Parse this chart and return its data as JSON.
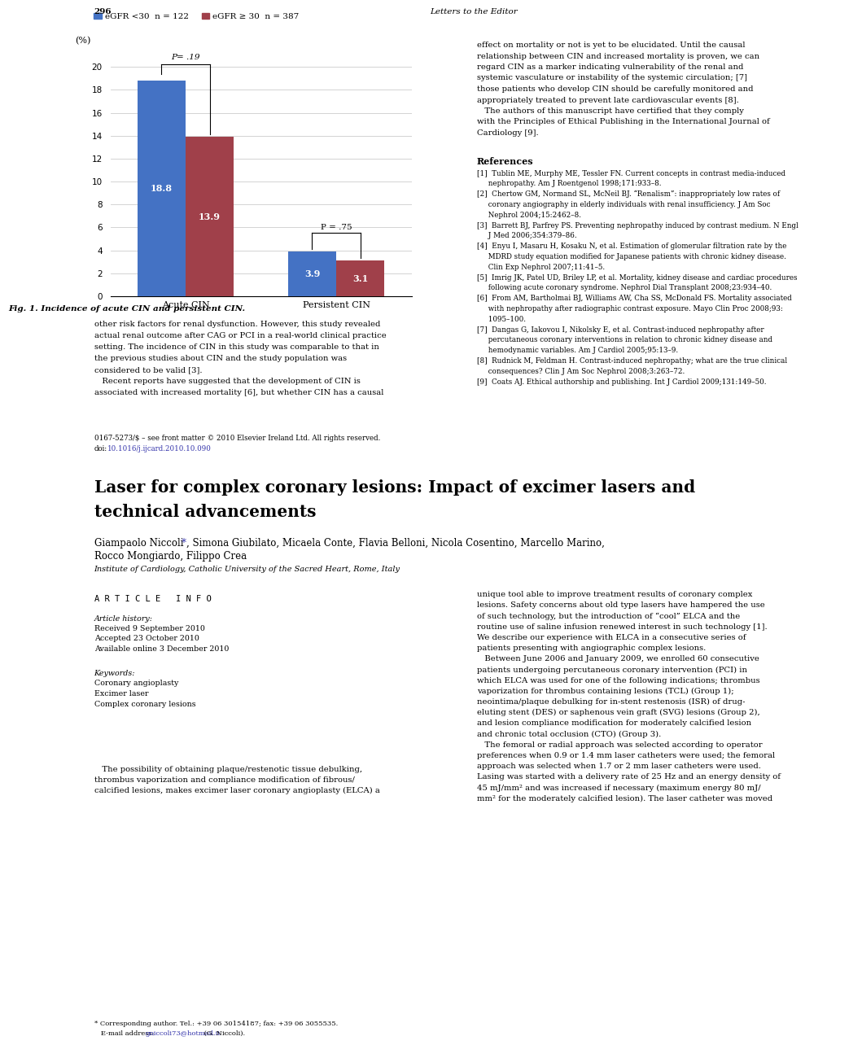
{
  "page_number": "296",
  "journal_header": "Letters to the Editor",
  "legend_blue_label": "eGFR <30  n = 122",
  "legend_red_label": "eGFR ≥ 30  n = 387",
  "y_label": "(%)",
  "bar_groups": [
    "Acute CIN",
    "Persistent CIN"
  ],
  "blue_values": [
    18.8,
    3.9
  ],
  "red_values": [
    13.9,
    3.1
  ],
  "p_values": [
    "P= .19",
    "P = .75"
  ],
  "fig_caption": "Fig. 1. Incidence of acute CIN and persistent CIN.",
  "blue_color": "#4472C4",
  "red_color": "#A0404A",
  "yticks": [
    0,
    2,
    4,
    6,
    8,
    10,
    12,
    14,
    16,
    18,
    20
  ],
  "right_col_lines": [
    "effect on mortality or not is yet to be elucidated. Until the causal",
    "relationship between CIN and increased mortality is proven, we can",
    "regard CIN as a marker indicating vulnerability of the renal and",
    "systemic vasculature or instability of the systemic circulation; [7]",
    "those patients who develop CIN should be carefully monitored and",
    "appropriately treated to prevent late cardiovascular events [8].",
    "   The authors of this manuscript have certified that they comply",
    "with the Principles of Ethical Publishing in the International Journal of",
    "Cardiology [9]."
  ],
  "references_title": "References",
  "ref_lines": [
    "[1]  Tublin ME, Murphy ME, Tessler FN. Current concepts in contrast media-induced",
    "     nephropathy. Am J Roentgenol 1998;171:933–8.",
    "[2]  Chertow GM, Normand SL, McNeil BJ. “Renalism”: inappropriately low rates of",
    "     coronary angiography in elderly individuals with renal insufficiency. J Am Soc",
    "     Nephrol 2004;15:2462–8.",
    "[3]  Barrett BJ, Parfrey PS. Preventing nephropathy induced by contrast medium. N Engl",
    "     J Med 2006;354:379–86.",
    "[4]  Enyu I, Masaru H, Kosaku N, et al. Estimation of glomerular filtration rate by the",
    "     MDRD study equation modified for Japanese patients with chronic kidney disease.",
    "     Clin Exp Nephrol 2007;11:41–5.",
    "[5]  Imrig JK, Patel UD, Briley LP, et al. Mortality, kidney disease and cardiac procedures",
    "     following acute coronary syndrome. Nephrol Dial Transplant 2008;23:934–40.",
    "[6]  From AM, Bartholmai BJ, Williams AW, Cha SS, McDonald FS. Mortality associated",
    "     with nephropathy after radiographic contrast exposure. Mayo Clin Proc 2008;93:",
    "     1095–100.",
    "[7]  Dangas G, Iakovou I, Nikolsky E, et al. Contrast-induced nephropathy after",
    "     percutaneous coronary interventions in relation to chronic kidney disease and",
    "     hemodynamic variables. Am J Cardiol 2005;95:13–9.",
    "[8]  Rudnick M, Feldman H. Contrast-induced nephropathy; what are the true clinical",
    "     consequences? Clin J Am Soc Nephrol 2008;3:263–72.",
    "[9]  Coats AJ. Ethical authorship and publishing. Int J Cardiol 2009;131:149–50."
  ],
  "left_body_lines": [
    "other risk factors for renal dysfunction. However, this study revealed",
    "actual renal outcome after CAG or PCI in a real-world clinical practice",
    "setting. The incidence of CIN in this study was comparable to that in",
    "the previous studies about CIN and the study population was",
    "considered to be valid [3].",
    "   Recent reports have suggested that the development of CIN is",
    "associated with increased mortality [6], but whether CIN has a causal"
  ],
  "footer_line1": "0167-5273/$ – see front matter © 2010 Elsevier Ireland Ltd. All rights reserved.",
  "footer_line2_pre": "doi:",
  "footer_line2_link": "10.1016/j.ijcard.2010.10.090",
  "second_title_line1": "Laser for complex coronary lesions: Impact of excimer lasers and",
  "second_title_line2": "technical advancements",
  "authors_line1_pre": "Giampaolo Niccoli ",
  "authors_line1_post": ", Simona Giubilato, Micaela Conte, Flavia Belloni, Nicola Cosentino, Marcello Marino,",
  "authors_line2": "Rocco Mongiardo, Filippo Crea",
  "affiliation": "Institute of Cardiology, Catholic University of the Sacred Heart, Rome, Italy",
  "article_info_title": "A R T I C L E   I N F O",
  "article_history_label": "Article history:",
  "article_history": [
    "Received 9 September 2010",
    "Accepted 23 October 2010",
    "Available online 3 December 2010"
  ],
  "keywords_label": "Keywords:",
  "keywords": [
    "Coronary angioplasty",
    "Excimer laser",
    "Complex coronary lesions"
  ],
  "abstract_lines": [
    "   The possibility of obtaining plaque/restenotic tissue debulking,",
    "thrombus vaporization and compliance modification of fibrous/",
    "calcified lesions, makes excimer laser coronary angioplasty (ELCA) a"
  ],
  "footnote_line1": "* Corresponding author. Tel.: +39 06 30154187; fax: +39 06 3055535.",
  "footnote_line2_pre": "   E-mail address: ",
  "footnote_email": "gniccoli73@hotmail.it",
  "footnote_line2_post": " (G. Niccoli).",
  "right2_lines": [
    "unique tool able to improve treatment results of coronary complex",
    "lesions. Safety concerns about old type lasers have hampered the use",
    "of such technology, but the introduction of “cool” ELCA and the",
    "routine use of saline infusion renewed interest in such technology [1].",
    "We describe our experience with ELCA in a consecutive series of",
    "patients presenting with angiographic complex lesions.",
    "   Between June 2006 and January 2009, we enrolled 60 consecutive",
    "patients undergoing percutaneous coronary intervention (PCI) in",
    "which ELCA was used for one of the following indications; thrombus",
    "vaporization for thrombus containing lesions (TCL) (Group 1);",
    "neointima/plaque debulking for in-stent restenosis (ISR) of drug-",
    "eluting stent (DES) or saphenous vein graft (SVG) lesions (Group 2),",
    "and lesion compliance modification for moderately calcified lesion",
    "and chronic total occlusion (CTO) (Group 3).",
    "   The femoral or radial approach was selected according to operator",
    "preferences when 0.9 or 1.4 mm laser catheters were used; the femoral",
    "approach was selected when 1.7 or 2 mm laser catheters were used.",
    "Lasing was started with a delivery rate of 25 Hz and an energy density of",
    "45 mJ/mm² and was increased if necessary (maximum energy 80 mJ/",
    "mm² for the moderately calcified lesion). The laser catheter was moved"
  ]
}
